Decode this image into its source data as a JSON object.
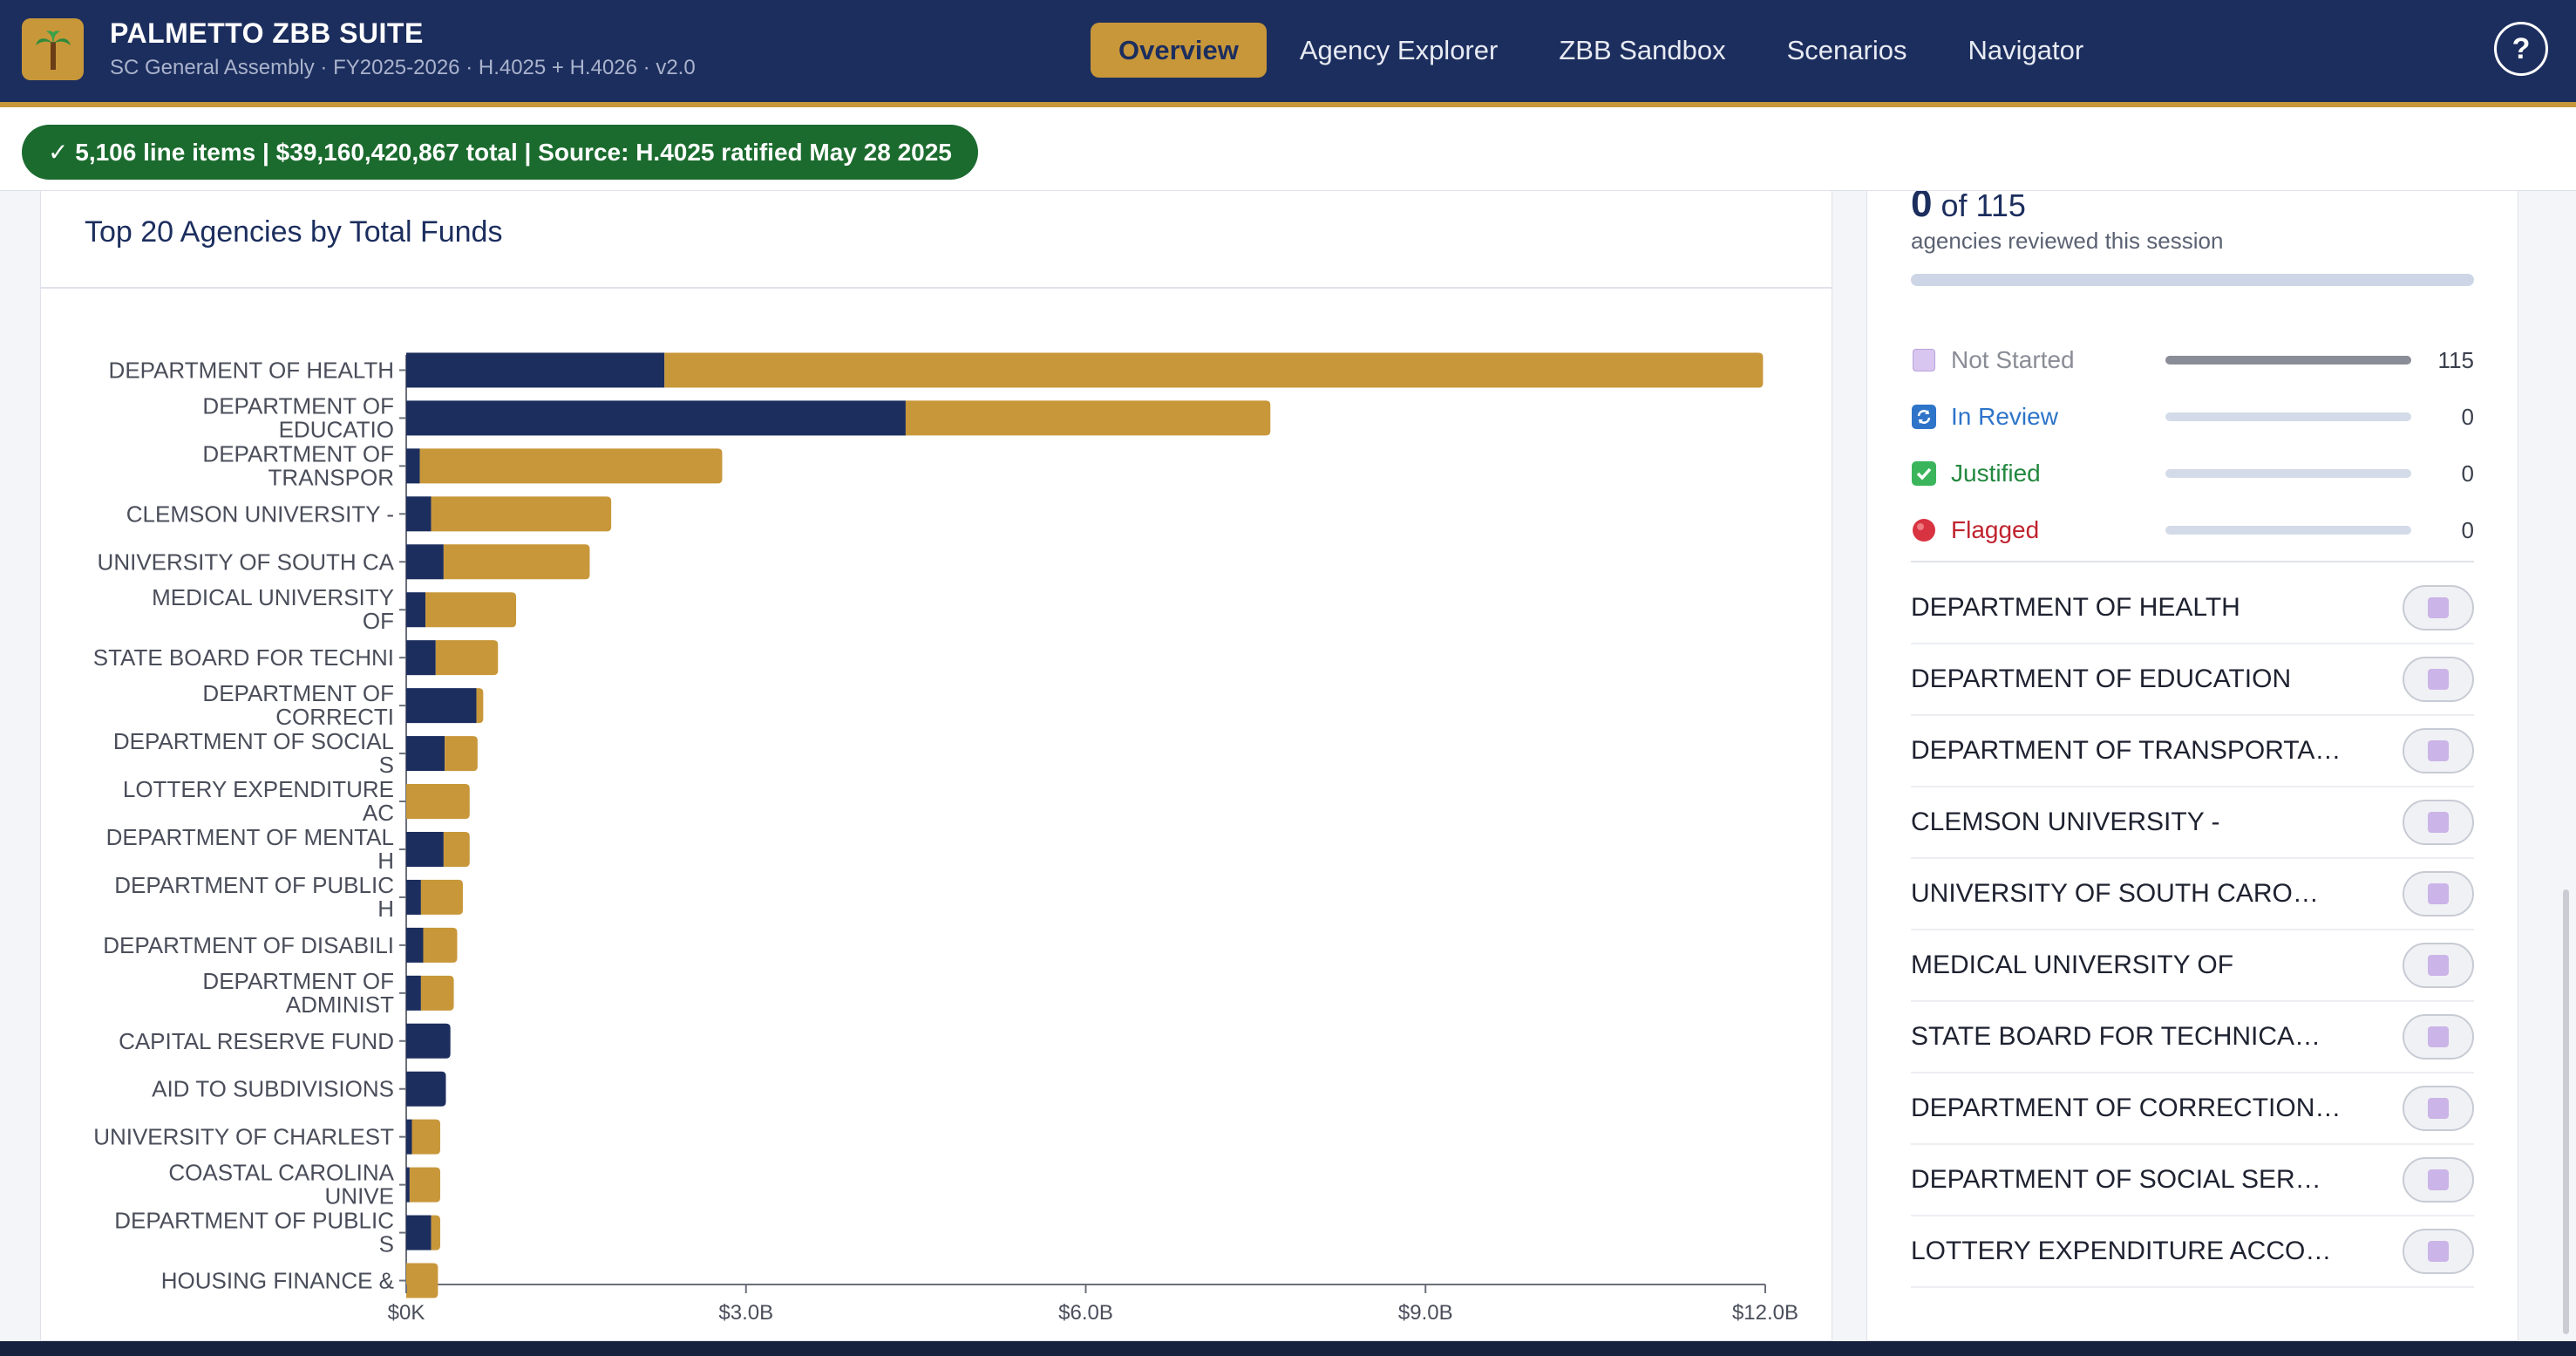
{
  "app": {
    "title": "PALMETTO ZBB SUITE",
    "subtitle": "SC General Assembly · FY2025-2026 · H.4025 + H.4026 · v2.0",
    "logo_icon": "palm-tree-icon"
  },
  "nav": {
    "items": [
      "Overview",
      "Agency Explorer",
      "ZBB Sandbox",
      "Scenarios",
      "Navigator"
    ],
    "active": "Overview",
    "help_label": "?"
  },
  "status": {
    "check": "✓",
    "line_items": "5,106 line items",
    "sep1": " | ",
    "total_amount": "$39,160,420,867",
    "total_word": " total",
    "source": " | Source: H.4025 ratified May 28 2025"
  },
  "chart": {
    "title": "Top 20 Agencies by Total Funds"
  },
  "chart_data": {
    "type": "bar",
    "orientation": "horizontal",
    "stacked": true,
    "categories": [
      [
        "DEPARTMENT OF HEALTH"
      ],
      [
        "DEPARTMENT OF",
        "EDUCATIO"
      ],
      [
        "DEPARTMENT OF",
        "TRANSPOR"
      ],
      [
        "CLEMSON UNIVERSITY -"
      ],
      [
        "UNIVERSITY OF SOUTH CA"
      ],
      [
        "MEDICAL UNIVERSITY",
        "OF"
      ],
      [
        "STATE BOARD FOR TECHNI"
      ],
      [
        "DEPARTMENT OF",
        "CORRECTI"
      ],
      [
        "DEPARTMENT OF SOCIAL",
        "S"
      ],
      [
        "LOTTERY EXPENDITURE",
        "AC"
      ],
      [
        "DEPARTMENT OF MENTAL",
        "H"
      ],
      [
        "DEPARTMENT OF PUBLIC",
        "H"
      ],
      [
        "DEPARTMENT OF DISABILI"
      ],
      [
        "DEPARTMENT OF",
        "ADMINIST"
      ],
      [
        "CAPITAL RESERVE FUND"
      ],
      [
        "AID TO SUBDIVISIONS"
      ],
      [
        "UNIVERSITY OF CHARLEST"
      ],
      [
        "COASTAL CAROLINA",
        "UNIVE"
      ],
      [
        "DEPARTMENT OF PUBLIC",
        "S"
      ],
      [
        "HOUSING FINANCE &"
      ]
    ],
    "series": [
      {
        "values": [
          2.28,
          4.41,
          0.12,
          0.22,
          0.33,
          0.17,
          0.26,
          0.62,
          0.34,
          0.0,
          0.33,
          0.13,
          0.15,
          0.13,
          0.39,
          0.35,
          0.05,
          0.03,
          0.22,
          0.0
        ],
        "color": "#1c2e5e"
      },
      {
        "values": [
          9.7,
          3.22,
          2.67,
          1.59,
          1.29,
          0.8,
          0.55,
          0.06,
          0.29,
          0.56,
          0.23,
          0.37,
          0.3,
          0.29,
          0.0,
          0.0,
          0.25,
          0.27,
          0.08,
          0.28
        ],
        "color": "#c8973a"
      }
    ],
    "xlim": [
      0,
      12
    ],
    "xticks": [
      "$0K",
      "$3.0B",
      "$6.0B",
      "$9.0B",
      "$12.0B"
    ],
    "grid": false,
    "legend": "none"
  },
  "review": {
    "count": "0",
    "of_total": "of 115",
    "caption": "agencies reviewed this session",
    "statuses": [
      {
        "label": "Not Started",
        "count": "115",
        "fraction": 1.0,
        "color": "#8a8d96",
        "icon": "square-purple-icon"
      },
      {
        "label": "In Review",
        "count": "0",
        "fraction": 0.0,
        "color": "#2e74c9",
        "icon": "refresh-icon"
      },
      {
        "label": "Justified",
        "count": "0",
        "fraction": 0.0,
        "color": "#23883f",
        "icon": "check-box-icon"
      },
      {
        "label": "Flagged",
        "count": "0",
        "fraction": 0.0,
        "color": "#c0232f",
        "icon": "red-circle-icon"
      }
    ]
  },
  "agencies": [
    "DEPARTMENT OF HEALTH",
    "DEPARTMENT OF EDUCATION",
    "DEPARTMENT OF TRANSPORTA…",
    "CLEMSON UNIVERSITY -",
    "UNIVERSITY OF SOUTH CARO…",
    "MEDICAL UNIVERSITY OF",
    "STATE BOARD FOR TECHNICA…",
    "DEPARTMENT OF CORRECTION…",
    "DEPARTMENT OF SOCIAL SER…",
    "LOTTERY EXPENDITURE ACCO…"
  ]
}
